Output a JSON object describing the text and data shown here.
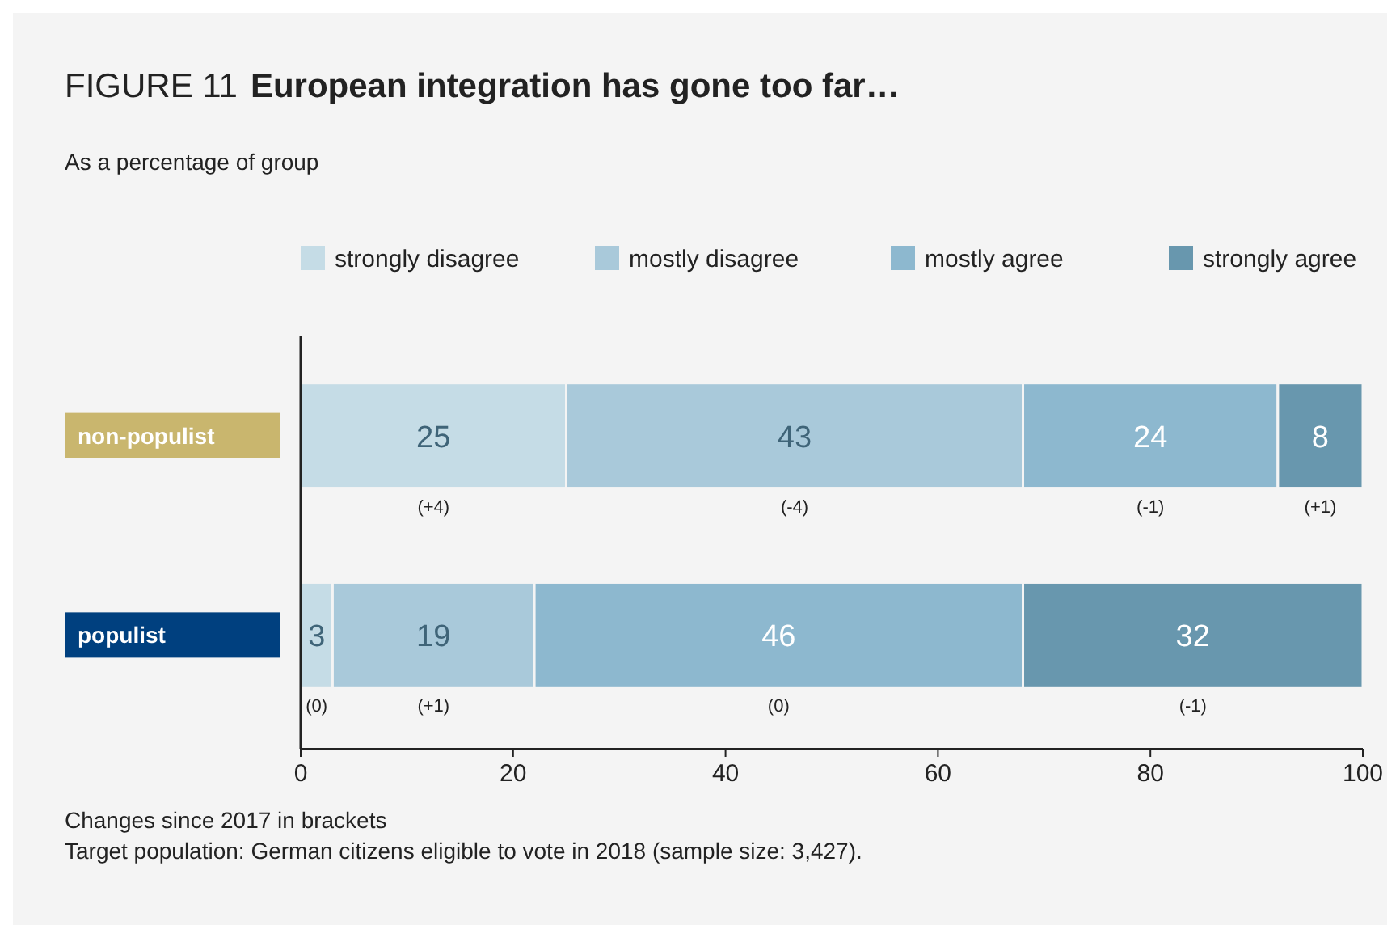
{
  "chart_data": {
    "type": "bar",
    "orientation": "horizontal",
    "stacked": true,
    "title": "FIGURE 11 European integration has gone too far…",
    "subtitle": "As a percentage of group",
    "categories": [
      "non-populist",
      "populist"
    ],
    "series": [
      {
        "name": "strongly disagree",
        "color": "#c5dce6",
        "values": [
          25,
          3
        ]
      },
      {
        "name": "mostly disagree",
        "color": "#a9c9da",
        "values": [
          43,
          19
        ]
      },
      {
        "name": "mostly agree",
        "color": "#8db8cf",
        "values": [
          24,
          46
        ]
      },
      {
        "name": "strongly agree",
        "color": "#6897ae",
        "values": [
          8,
          32
        ]
      }
    ],
    "data_labels": true,
    "legend": "top",
    "grid": false,
    "xlim": [
      0,
      100
    ],
    "xticks": [
      0,
      20,
      40,
      60,
      80,
      100
    ],
    "annotations": [
      "(+4)",
      "(-4)",
      "(-1)",
      "(+1)",
      "(0)",
      "(+1)",
      "(0)",
      "(-1)",
      "Changes since 2017 in brackets",
      "Target population: German citizens eligible to vote in 2018 (sample size: 3,427)."
    ]
  }
}
